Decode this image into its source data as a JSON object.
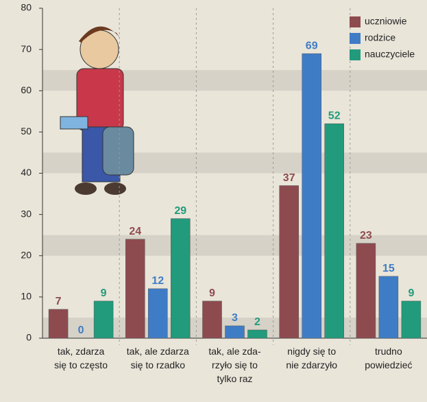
{
  "chart_data": {
    "type": "bar",
    "categories": [
      "tak, zdarza\nsię to często",
      "tak, ale zdarza\nsię to rzadko",
      "tak, ale zda-\nrzyło się to\ntylko raz",
      "nigdy się to\nnie zdarzyło",
      "trudno\npowiedzieć"
    ],
    "series": [
      {
        "name": "uczniowie",
        "color": "#8e4b4f",
        "values": [
          7,
          24,
          9,
          37,
          23
        ]
      },
      {
        "name": "rodzice",
        "color": "#3f7cc6",
        "values": [
          0,
          12,
          3,
          69,
          15
        ]
      },
      {
        "name": "nauczyciele",
        "color": "#219b7c",
        "values": [
          9,
          29,
          2,
          52,
          9
        ]
      }
    ],
    "ylim": [
      0,
      80
    ],
    "yticks": [
      0,
      10,
      20,
      30,
      40,
      50,
      60,
      70,
      80
    ],
    "grid": true,
    "legend": "top-right"
  }
}
